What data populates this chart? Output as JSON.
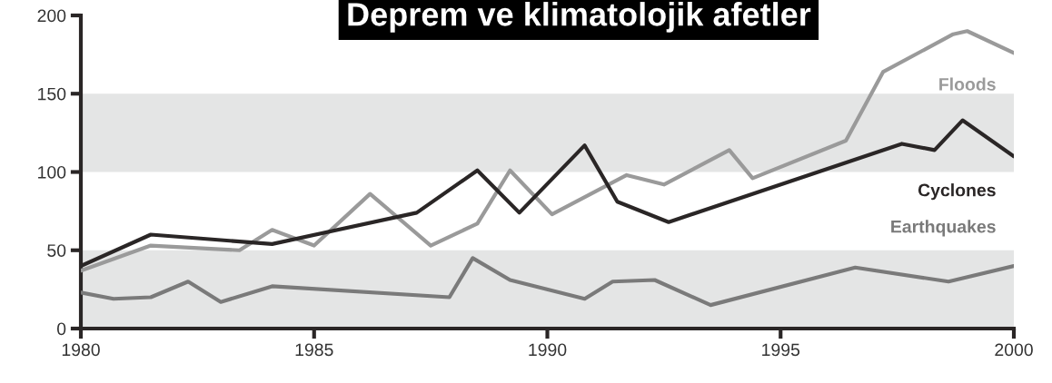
{
  "chart_data": {
    "type": "line",
    "title": "Deprem ve klimatolojik afetler",
    "series": [
      {
        "name": "Floods",
        "color": "#9a9a9a",
        "x": [
          1980,
          1981.5,
          1983.4,
          1984.1,
          1985.0,
          1986.2,
          1987.5,
          1988.5,
          1989.2,
          1990.1,
          1991.7,
          1992.5,
          1993.9,
          1994.4,
          1996.4,
          1997.2,
          1998.7,
          1999.0,
          2000
        ],
        "values": [
          37,
          53,
          50,
          63,
          53,
          86,
          53,
          67,
          101,
          73,
          98,
          92,
          114,
          96,
          120,
          164,
          188,
          190,
          176
        ]
      },
      {
        "name": "Cyclones",
        "color": "#2a2626",
        "x": [
          1980,
          1981.5,
          1984.1,
          1987.2,
          1988.5,
          1989.4,
          1990.8,
          1991.5,
          1992.6,
          1997.6,
          1998.3,
          1998.9,
          2000
        ],
        "values": [
          40,
          60,
          54,
          74,
          101,
          74,
          117,
          81,
          68,
          118,
          114,
          133,
          110
        ]
      },
      {
        "name": "Earthquakes",
        "color": "#7a7a7a",
        "x": [
          1980,
          1980.7,
          1981.5,
          1982.3,
          1983.0,
          1984.1,
          1987.9,
          1988.4,
          1989.2,
          1990.8,
          1991.4,
          1992.3,
          1993.5,
          1996.6,
          1998.6,
          2000
        ],
        "values": [
          23,
          19,
          20,
          30,
          17,
          27,
          20,
          45,
          31,
          19,
          30,
          31,
          15,
          39,
          30,
          40
        ]
      }
    ],
    "xlim": [
      1980,
      2000
    ],
    "xticks": [
      1980,
      1985,
      1990,
      1995,
      2000
    ],
    "ylim": [
      0,
      200
    ],
    "yticks": [
      0,
      50,
      100,
      150,
      200
    ],
    "bands": [
      {
        "axis": "y",
        "from": 0,
        "to": 50,
        "color": "#e4e5e5"
      },
      {
        "axis": "y",
        "from": 100,
        "to": 150,
        "color": "#e4e5e5"
      }
    ],
    "grid": false,
    "legend": false,
    "marker": "none",
    "line_style": "solid"
  }
}
